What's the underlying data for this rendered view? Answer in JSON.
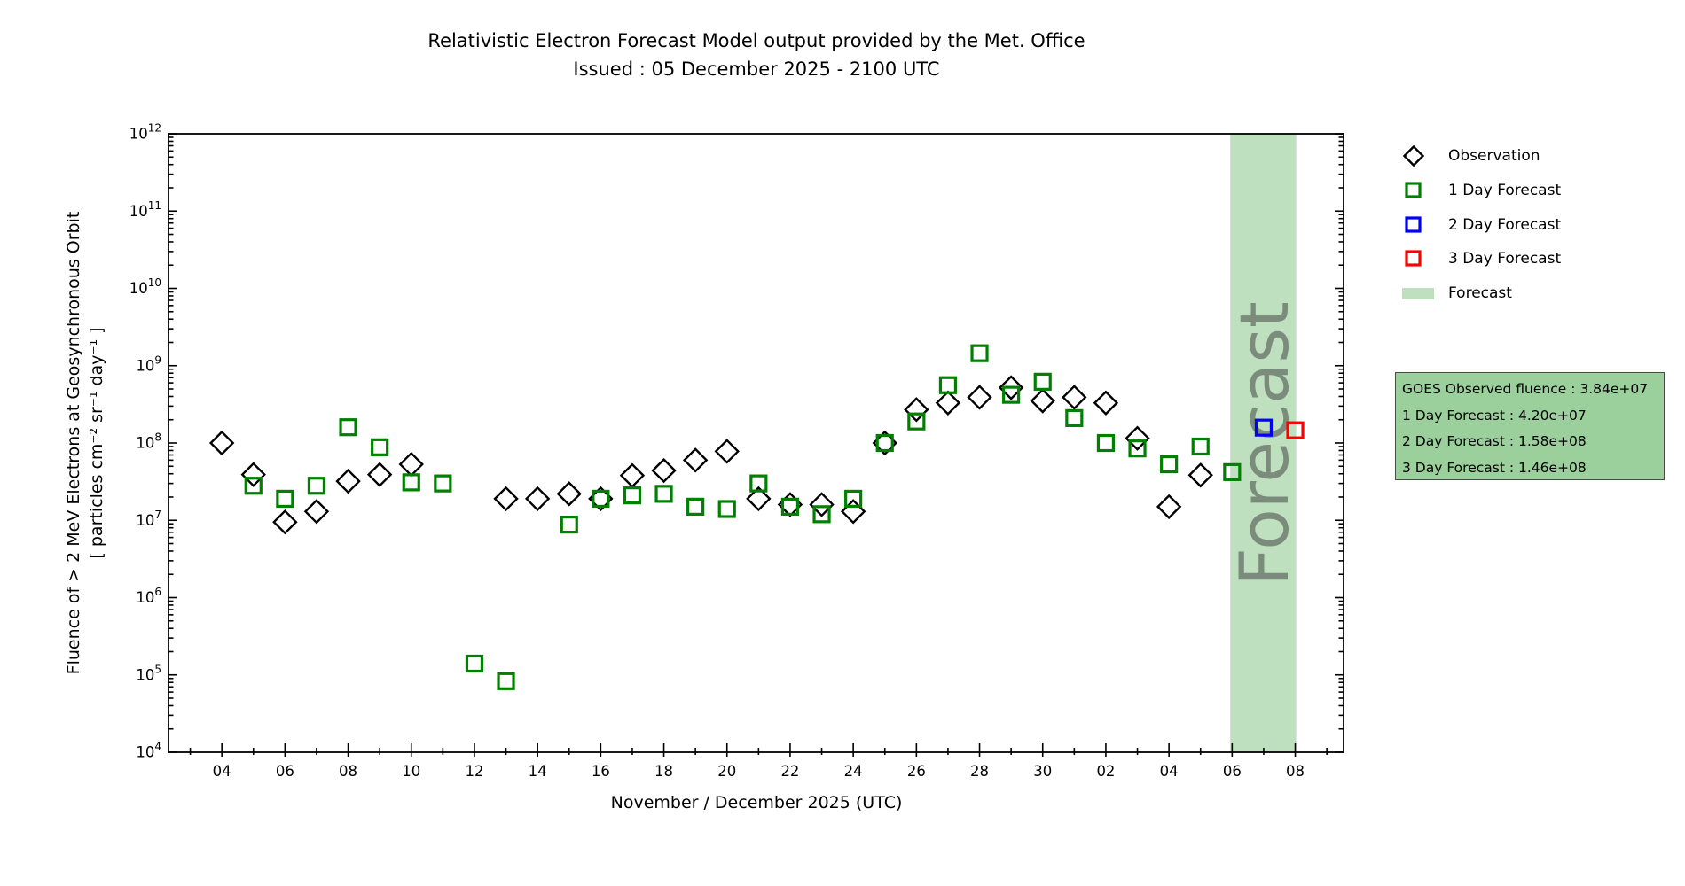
{
  "title": {
    "line1": "Relativistic Electron Forecast Model output provided by the Met. Office",
    "line2": "Issued : 05 December 2025 - 2100 UTC"
  },
  "axes": {
    "x_label": "November / December 2025 (UTC)",
    "y_label_line1": "Fluence of > 2 MeV Electrons at Geosynchronous Orbit",
    "y_label_line2": "[ particles cm⁻² sr⁻¹ day⁻¹ ]"
  },
  "legend": {
    "items": [
      {
        "label": "Observation",
        "marker": "diamond",
        "color": "#000000"
      },
      {
        "label": "1 Day Forecast",
        "marker": "square",
        "color": "#008000"
      },
      {
        "label": "2 Day Forecast",
        "marker": "square",
        "color": "#0000ff"
      },
      {
        "label": "3 Day Forecast",
        "marker": "square",
        "color": "#ff0000"
      },
      {
        "label": "Forecast",
        "marker": "patch",
        "color": "#bee0bf"
      }
    ]
  },
  "info_box": {
    "bg": "#9bcf9b",
    "lines": [
      "GOES Observed fluence : 3.84e+07",
      "1 Day Forecast : 4.20e+07",
      "2 Day Forecast : 1.58e+08",
      "3 Day Forecast : 1.46e+08"
    ]
  },
  "forecast_band": {
    "label": "Forecast",
    "fill": "#bee0bf",
    "text_color": "#7c8c7c",
    "x_start_day": 31.94,
    "x_end_day": 34.03
  },
  "chart_data": {
    "type": "scatter",
    "title": "Relativistic Electron Forecast Model output provided by the Met. Office",
    "subtitle": "Issued : 05 December 2025 - 2100 UTC",
    "xlabel": "November / December 2025 (UTC)",
    "ylabel": "Fluence of > 2 MeV Electrons at Geosynchronous Orbit [ particles cm-2 sr-1 day-1 ]",
    "x_axis": {
      "day0_date": "Nov 04",
      "xlim_days": [
        -1.69,
        35.53
      ],
      "major_tick_days": [
        0,
        2,
        4,
        6,
        8,
        10,
        12,
        14,
        16,
        18,
        20,
        22,
        24,
        26,
        28,
        30,
        32,
        34
      ],
      "major_tick_labels": [
        "04",
        "06",
        "08",
        "10",
        "12",
        "14",
        "16",
        "18",
        "20",
        "22",
        "24",
        "26",
        "28",
        "30",
        "02",
        "04",
        "06",
        "08"
      ],
      "minor_tick_days": [
        -1,
        1,
        3,
        5,
        7,
        9,
        11,
        13,
        15,
        17,
        19,
        21,
        23,
        25,
        27,
        29,
        31,
        33,
        35
      ]
    },
    "y_axis": {
      "scale": "log",
      "ylim": [
        10000.0,
        1000000000000.0
      ],
      "tick_exponents": [
        4,
        5,
        6,
        7,
        8,
        9,
        10,
        11,
        12
      ],
      "minor_mantissas": [
        2,
        3,
        4,
        5,
        6,
        7,
        8,
        9
      ]
    },
    "grid": false,
    "legend_position": "outside-right",
    "series": [
      {
        "name": "Observation",
        "marker": "diamond",
        "color": "#000000",
        "points": [
          [
            0,
            100000000.0
          ],
          [
            1,
            39000000.0
          ],
          [
            2,
            9500000.0
          ],
          [
            3,
            13000000.0
          ],
          [
            4,
            32000000.0
          ],
          [
            5,
            39000000.0
          ],
          [
            6,
            53000000.0
          ],
          [
            9,
            19000000.0
          ],
          [
            10,
            19000000.0
          ],
          [
            11,
            22000000.0
          ],
          [
            12,
            19000000.0
          ],
          [
            13,
            38000000.0
          ],
          [
            14,
            44000000.0
          ],
          [
            15,
            60000000.0
          ],
          [
            16,
            78000000.0
          ],
          [
            17,
            19000000.0
          ],
          [
            18,
            16000000.0
          ],
          [
            19,
            16000000.0
          ],
          [
            20,
            13000000.0
          ],
          [
            21,
            100000000.0
          ],
          [
            22,
            270000000.0
          ],
          [
            23,
            330000000.0
          ],
          [
            24,
            390000000.0
          ],
          [
            25,
            520000000.0
          ],
          [
            26,
            350000000.0
          ],
          [
            27,
            390000000.0
          ],
          [
            28,
            330000000.0
          ],
          [
            29,
            115000000.0
          ],
          [
            30,
            15000000.0
          ],
          [
            31,
            38400000.0
          ]
        ]
      },
      {
        "name": "1 Day Forecast",
        "marker": "square",
        "color": "#008000",
        "points": [
          [
            1,
            28000000.0
          ],
          [
            2,
            19000000.0
          ],
          [
            3,
            28000000.0
          ],
          [
            4,
            160000000.0
          ],
          [
            5,
            88000000.0
          ],
          [
            6,
            31000000.0
          ],
          [
            7,
            30000000.0
          ],
          [
            8,
            140000.0
          ],
          [
            9,
            83000.0
          ],
          [
            11,
            8800000.0
          ],
          [
            12,
            19000000.0
          ],
          [
            13,
            21000000.0
          ],
          [
            14,
            22000000.0
          ],
          [
            15,
            15000000.0
          ],
          [
            16,
            14000000.0
          ],
          [
            17,
            30000000.0
          ],
          [
            18,
            15000000.0
          ],
          [
            19,
            12000000.0
          ],
          [
            20,
            19000000.0
          ],
          [
            21,
            100000000.0
          ],
          [
            22,
            190000000.0
          ],
          [
            23,
            560000000.0
          ],
          [
            24,
            1450000000.0
          ],
          [
            25,
            420000000.0
          ],
          [
            26,
            620000000.0
          ],
          [
            27,
            210000000.0
          ],
          [
            28,
            100000000.0
          ],
          [
            29,
            85000000.0
          ],
          [
            30,
            53000000.0
          ],
          [
            31,
            90000000.0
          ],
          [
            32,
            42000000.0
          ]
        ]
      },
      {
        "name": "2 Day Forecast",
        "marker": "square",
        "color": "#0000ff",
        "points": [
          [
            33,
            158000000.0
          ]
        ]
      },
      {
        "name": "3 Day Forecast",
        "marker": "square",
        "color": "#ff0000",
        "points": [
          [
            34,
            146000000.0
          ]
        ]
      }
    ]
  }
}
